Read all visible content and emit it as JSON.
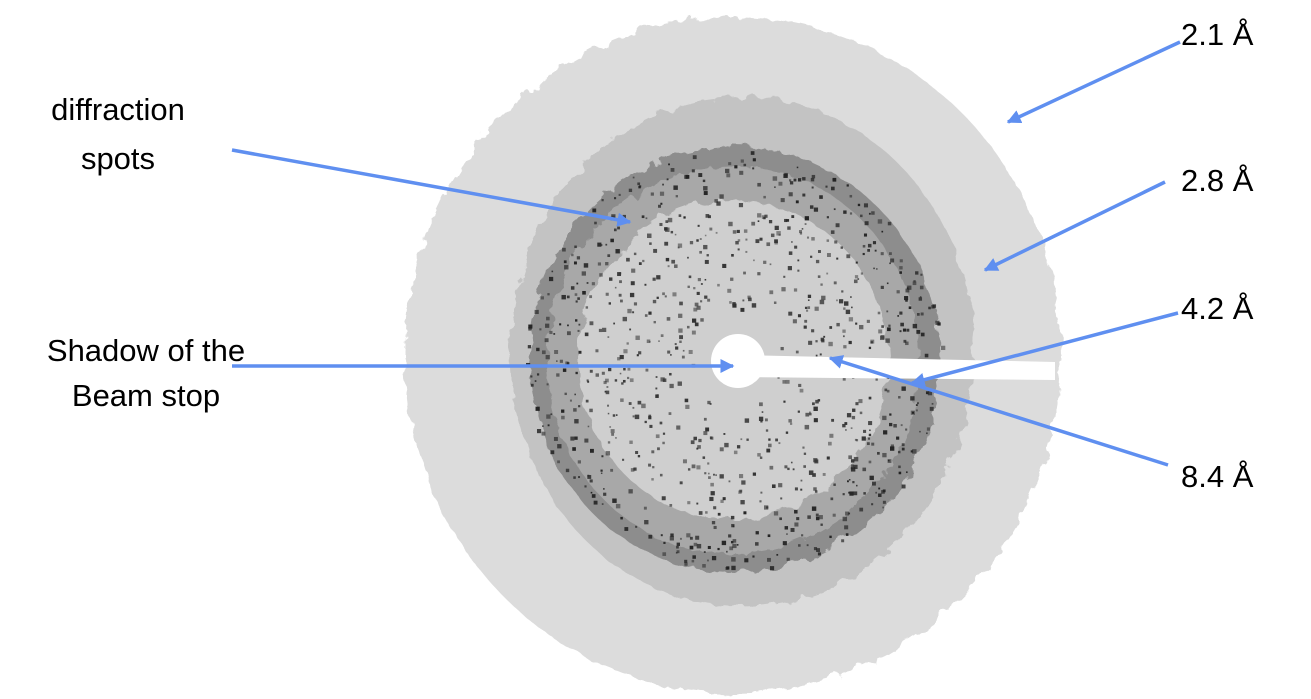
{
  "labels": [
    {
      "lines": [
        "diffraction",
        "spots"
      ]
    },
    {
      "lines": [
        "Shadow of the",
        "Beam stop"
      ]
    },
    {
      "lines": [
        "2.1 Å"
      ]
    },
    {
      "lines": [
        "2.8 Å"
      ]
    },
    {
      "lines": [
        "4.2 Å"
      ]
    },
    {
      "lines": [
        "8.4 Å"
      ]
    }
  ]
}
